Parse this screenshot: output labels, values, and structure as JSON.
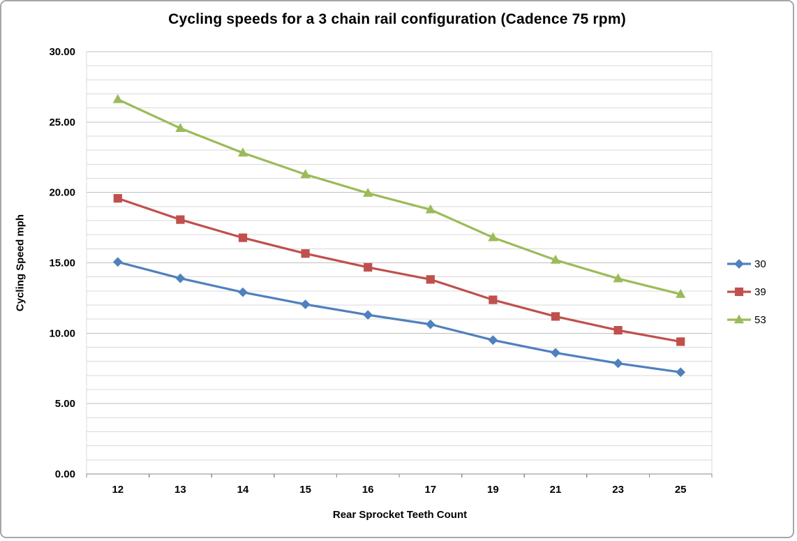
{
  "frame": {
    "background": "#ffffff",
    "border_color": "#a6a6a6"
  },
  "chart_data": {
    "type": "line",
    "title": "Cycling speeds for a 3 chain rail configuration (Cadence 75 rpm)",
    "xlabel": "Rear Sprocket Teeth Count",
    "ylabel": "Cycling Speed mph",
    "categories": [
      "12",
      "13",
      "14",
      "15",
      "16",
      "17",
      "19",
      "21",
      "23",
      "25"
    ],
    "ylim": [
      0,
      30
    ],
    "y_major_step": 5,
    "y_minor_step": 1,
    "y_tick_decimals": 2,
    "grid": true,
    "legend_position": "right",
    "colors": {
      "grid_minor": "#d9d9d9",
      "grid_major": "#bfbfbf",
      "axis_line": "#898989"
    },
    "series": [
      {
        "name": "30",
        "color": "#4F81BD",
        "marker": "diamond",
        "values": [
          15.06,
          13.9,
          12.91,
          12.05,
          11.3,
          10.63,
          9.51,
          8.61,
          7.86,
          7.23
        ]
      },
      {
        "name": "39",
        "color": "#C0504D",
        "marker": "square",
        "values": [
          19.58,
          18.07,
          16.78,
          15.66,
          14.68,
          13.82,
          12.37,
          11.19,
          10.21,
          9.4
        ]
      },
      {
        "name": "53",
        "color": "#9BBB59",
        "marker": "triangle",
        "values": [
          26.61,
          24.56,
          22.81,
          21.28,
          19.95,
          18.78,
          16.8,
          15.2,
          13.88,
          12.77
        ]
      }
    ]
  }
}
